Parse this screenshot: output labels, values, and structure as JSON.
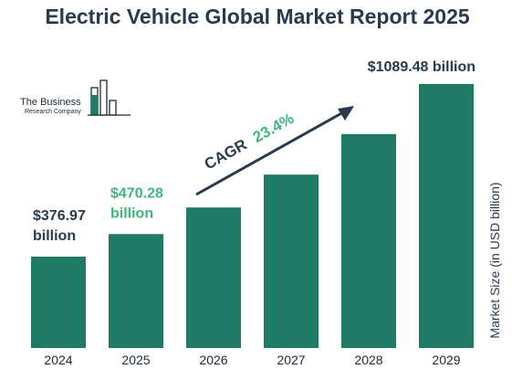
{
  "chart_data": {
    "type": "bar",
    "title": "Electric Vehicle Global Market Report 2025",
    "ylabel": "Market Size (in USD billion)",
    "categories": [
      "2024",
      "2025",
      "2026",
      "2027",
      "2028",
      "2029"
    ],
    "values": [
      376.97,
      470.28,
      580.0,
      715.6,
      882.9,
      1089.48
    ],
    "ylim": [
      0,
      1200
    ],
    "grid": false,
    "data_labels": [
      {
        "index": 0,
        "lines": [
          "$376.97",
          "billion"
        ],
        "color": "#2a3a4e"
      },
      {
        "index": 1,
        "lines": [
          "$470.28",
          "billion"
        ],
        "color": "#3cb87a"
      },
      {
        "index": 5,
        "lines": [
          "$1089.48 billion"
        ],
        "color": "#2a3a4e"
      }
    ],
    "annotation": {
      "label": "CAGR",
      "value": "23.4%"
    }
  },
  "logo": {
    "line1": "The Business",
    "line2": "Research Company"
  },
  "colors": {
    "bar": "#1f7a66",
    "title": "#2a3a4e",
    "accent": "#3cb87a",
    "axis": "#1e2a36"
  }
}
